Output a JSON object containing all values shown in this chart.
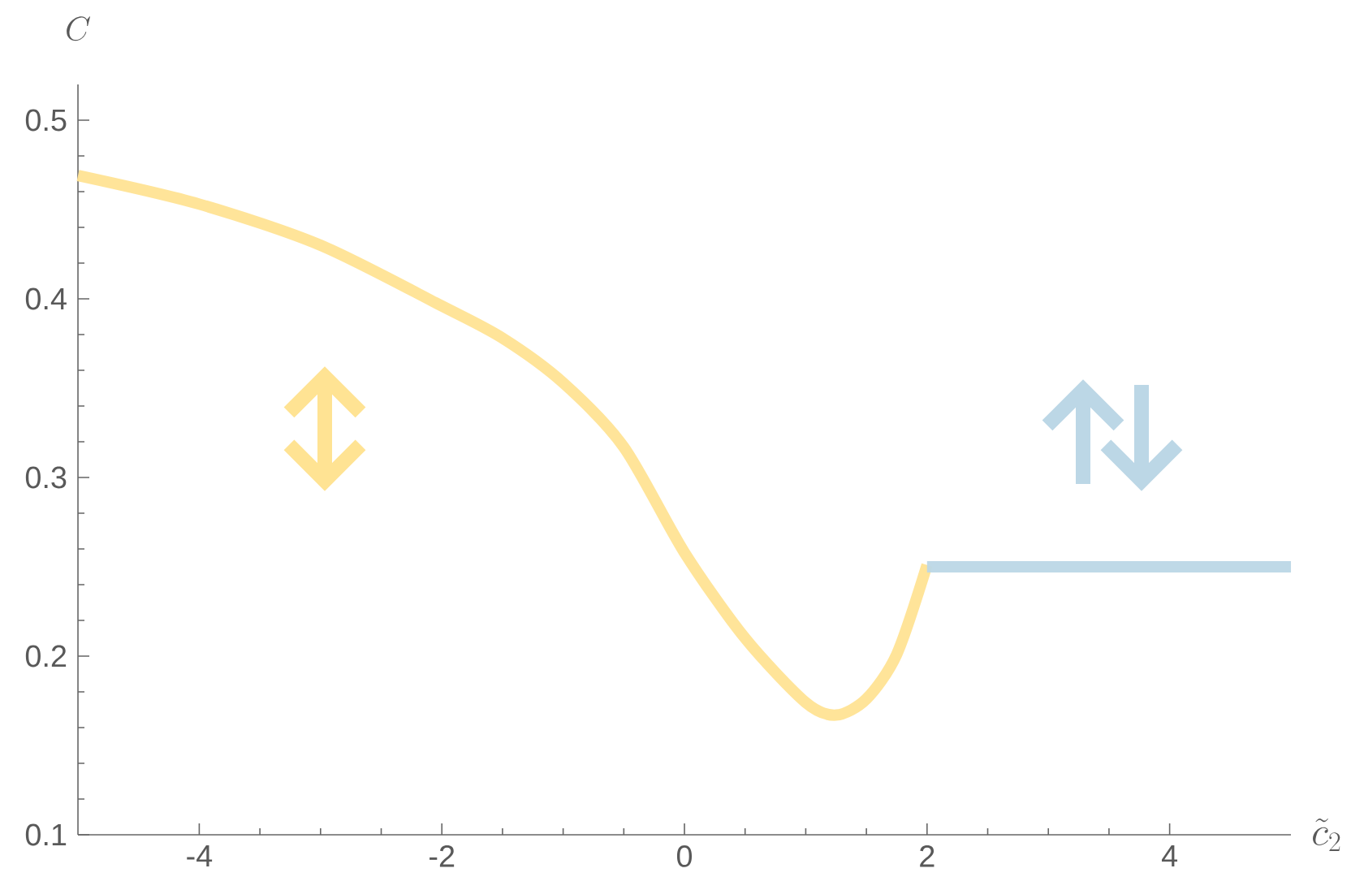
{
  "chart_data": {
    "type": "line",
    "xlabel": "\\tilde{c}_2",
    "ylabel": "C",
    "xlim": [
      -5,
      5
    ],
    "ylim": [
      0.1,
      0.52
    ],
    "xticks": [
      -4,
      -2,
      0,
      2,
      4
    ],
    "yticks": [
      0.1,
      0.2,
      0.3,
      0.4,
      0.5
    ],
    "grid": false,
    "marker": "none",
    "line_style": "solid",
    "series": [
      {
        "color": "#ffe393",
        "x": [
          -5,
          -4,
          -3,
          -2,
          -1.5,
          -1,
          -0.5,
          0,
          0.5,
          1,
          1.25,
          1.5,
          1.75,
          2
        ],
        "values": [
          0.469,
          0.453,
          0.43,
          0.396,
          0.378,
          0.353,
          0.317,
          0.258,
          0.21,
          0.174,
          0.167,
          0.176,
          0.201,
          0.251
        ]
      },
      {
        "color": "#bcd7e6",
        "x": [
          2,
          5
        ],
        "values": [
          0.25,
          0.25
        ]
      }
    ]
  }
}
